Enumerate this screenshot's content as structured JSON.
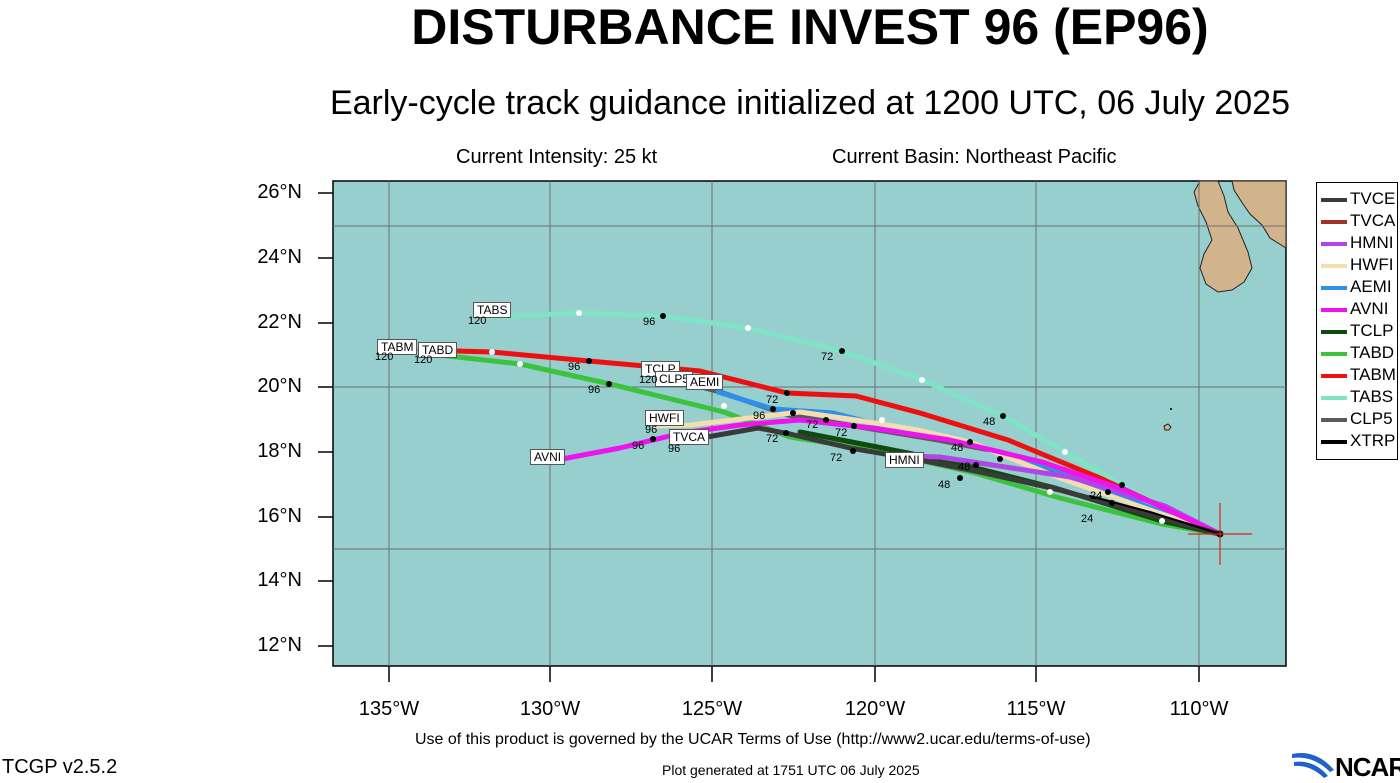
{
  "title": "DISTURBANCE INVEST 96 (EP96)",
  "subtitle": "Early-cycle track guidance initialized at 1200 UTC, 06 July 2025",
  "info": {
    "intensity": "Current Intensity: 25 kt",
    "basin": "Current Basin: Northeast Pacific"
  },
  "axes": {
    "lat_ticks": [
      "26°N",
      "24°N",
      "22°N",
      "20°N",
      "18°N",
      "16°N",
      "14°N",
      "12°N"
    ],
    "lon_ticks": [
      "135°W",
      "130°W",
      "125°W",
      "120°W",
      "115°W",
      "110°W"
    ]
  },
  "colors": {
    "ocean": "#96cfcd",
    "land": "#d2b48c",
    "grid": "#6f6f6f"
  },
  "legend": [
    {
      "name": "TVCE",
      "color": "#3a3a3a"
    },
    {
      "name": "TVCA",
      "color": "#a3322a"
    },
    {
      "name": "HMNI",
      "color": "#b146e6"
    },
    {
      "name": "HWFI",
      "color": "#f4ddb0"
    },
    {
      "name": "AEMI",
      "color": "#2f8ee8"
    },
    {
      "name": "AVNI",
      "color": "#ee14ee"
    },
    {
      "name": "TCLP",
      "color": "#0f4a0f"
    },
    {
      "name": "TABD",
      "color": "#3cc23c"
    },
    {
      "name": "TABM",
      "color": "#ee1010"
    },
    {
      "name": "TABS",
      "color": "#7fe3c6"
    },
    {
      "name": "CLP5",
      "color": "#5a5a5a"
    },
    {
      "name": "XTRP",
      "color": "#000000"
    }
  ],
  "track_labels": [
    {
      "text": "TABS"
    },
    {
      "text": "TABM"
    },
    {
      "text": "TABD"
    },
    {
      "text": "TCLP"
    },
    {
      "text": "CLP5"
    },
    {
      "text": "AEMI"
    },
    {
      "text": "HWFI"
    },
    {
      "text": "TVCA"
    },
    {
      "text": "AVNI"
    },
    {
      "text": "HMNI"
    }
  ],
  "hour_labels": [
    "120",
    "120",
    "120",
    "120",
    "96",
    "96",
    "96",
    "96",
    "96",
    "96",
    "96",
    "72",
    "72",
    "72",
    "72",
    "72",
    "72",
    "48",
    "48",
    "48",
    "48",
    "24",
    "24"
  ],
  "footer": {
    "terms": "Use of this product is governed by the UCAR Terms of Use (http://www2.ucar.edu/terms-of-use)",
    "version": "TCGP v2.5.2",
    "generated": "Plot generated at 1751 UTC   06 July 2025",
    "ncar": "NCAR"
  }
}
